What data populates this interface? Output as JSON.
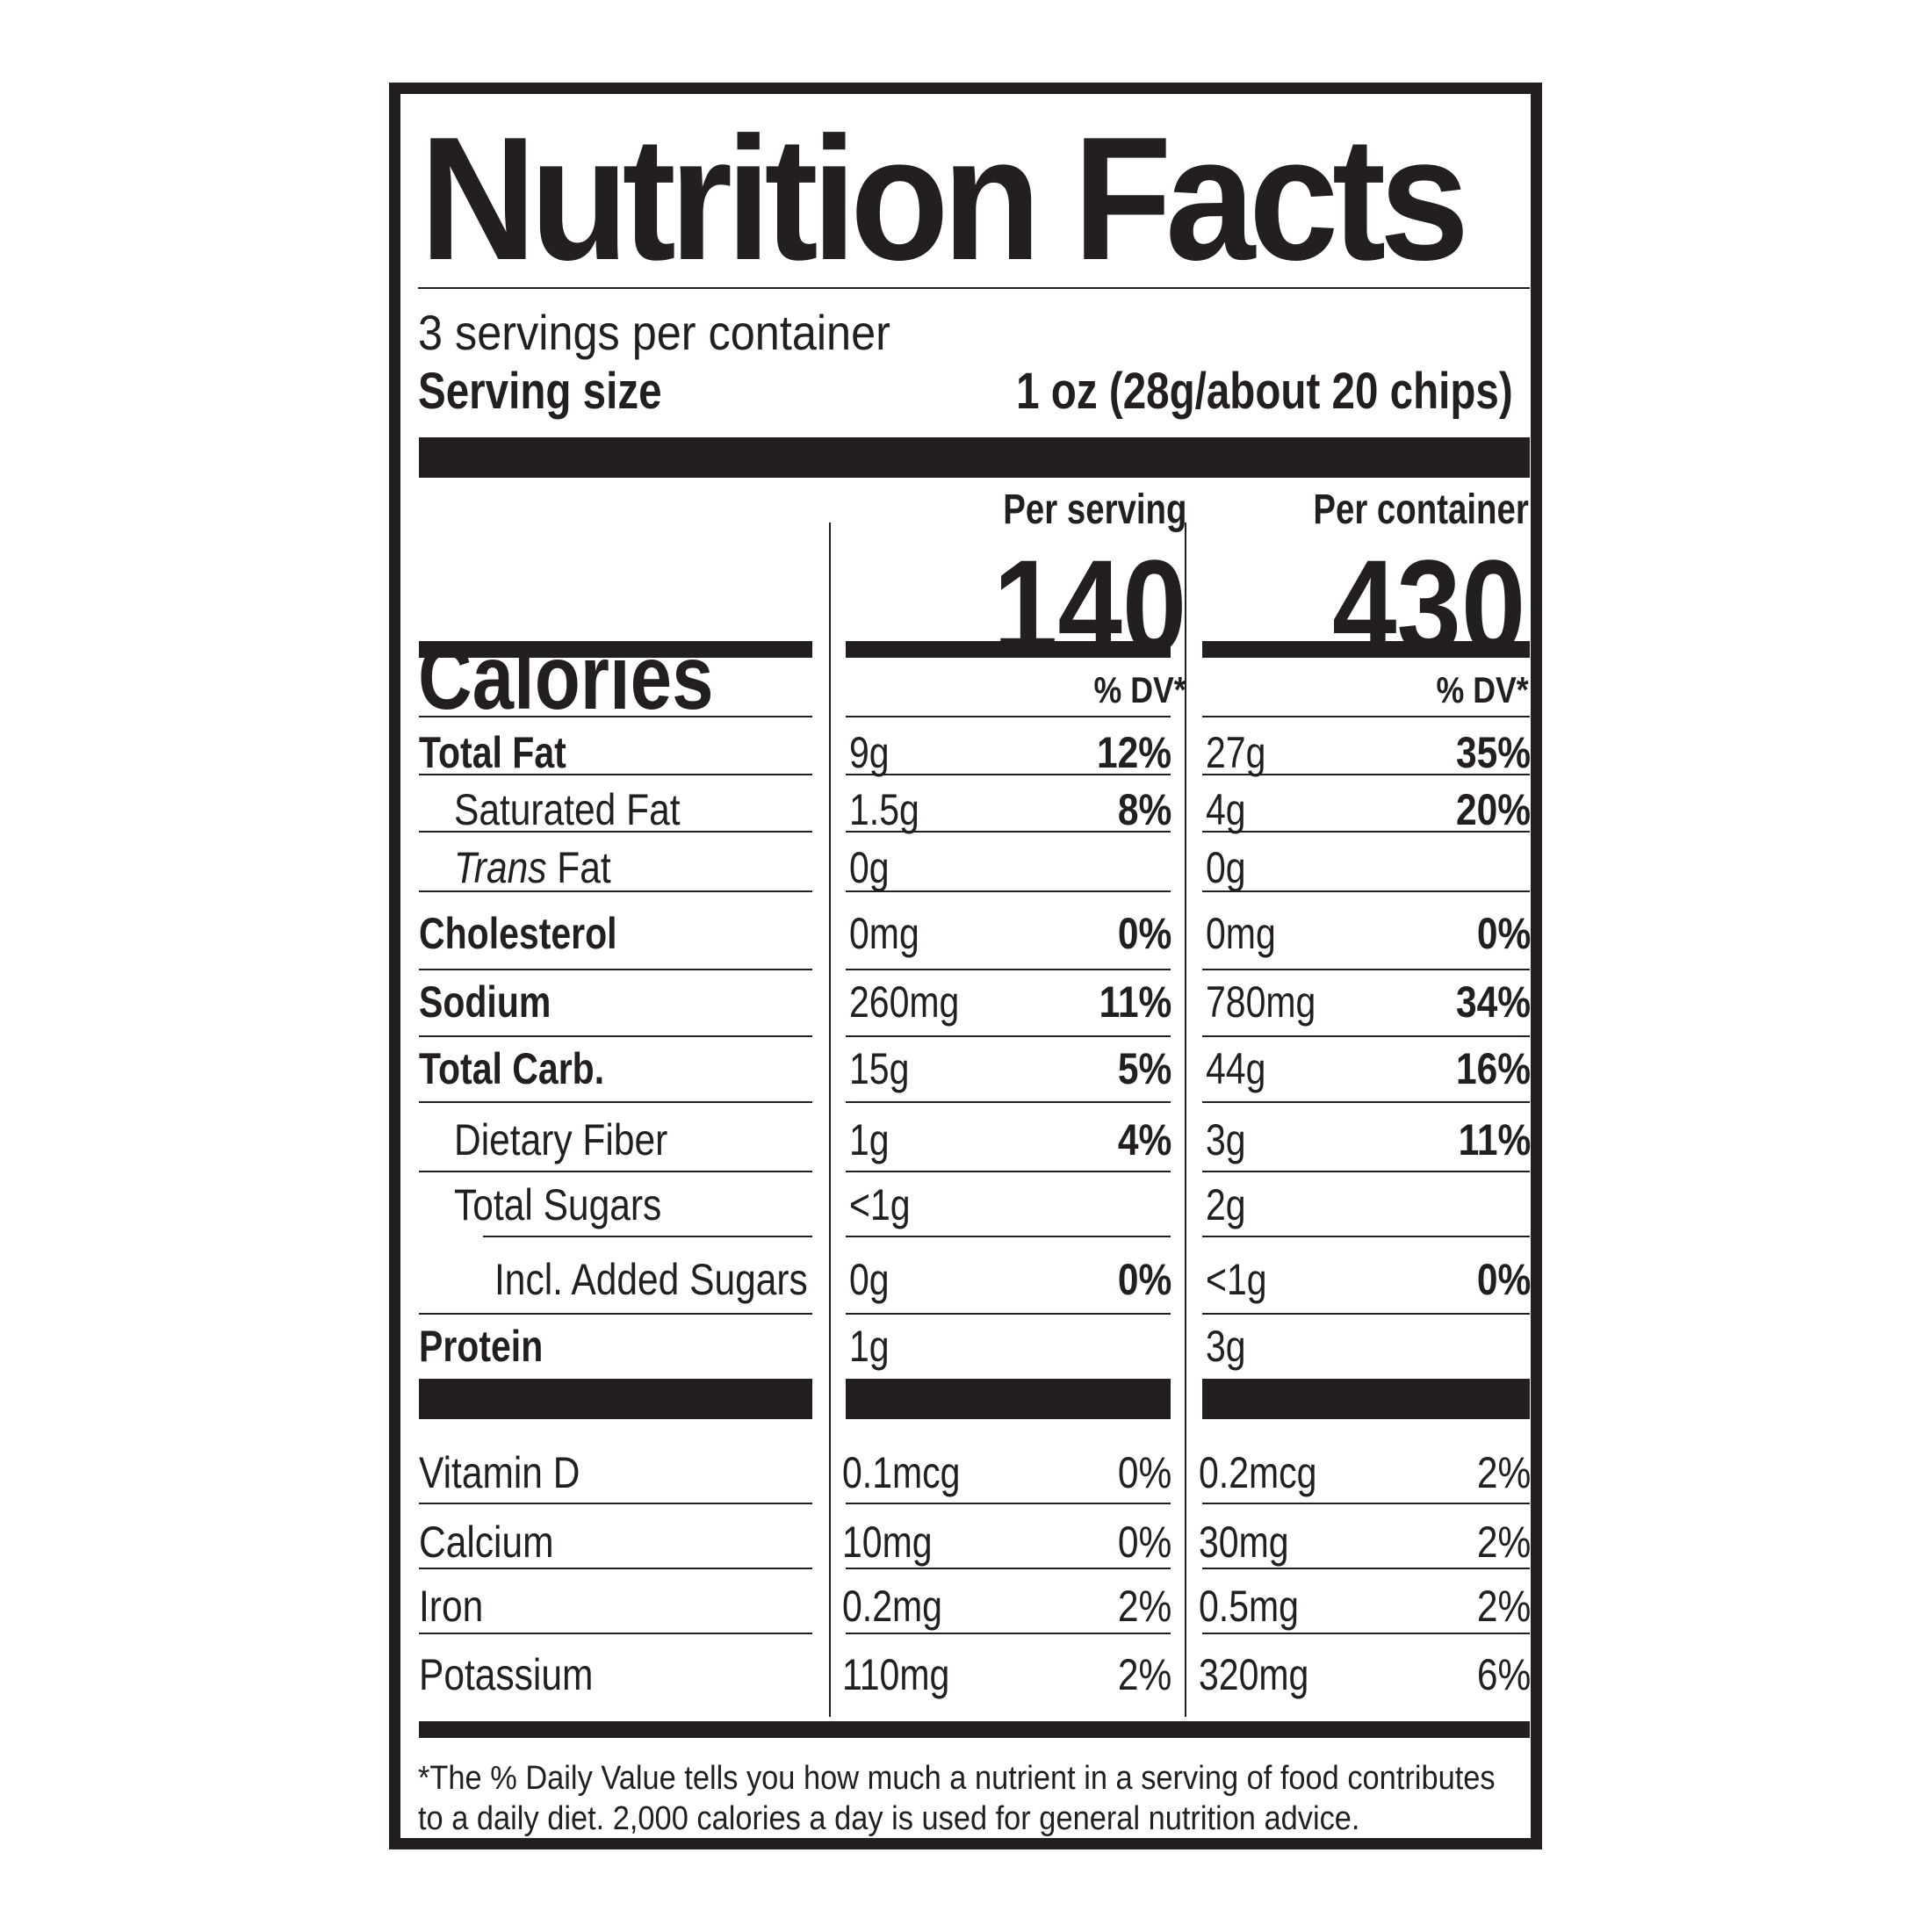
{
  "title": "Nutrition Facts",
  "servings_per_container": "3 servings per container",
  "serving_size": {
    "label": "Serving size",
    "value": "1 oz (28g/about 20 chips)"
  },
  "columns": {
    "per_serving": "Per serving",
    "per_container": "Per container"
  },
  "calories": {
    "label": "Calories",
    "per_serving": "140",
    "per_container": "430"
  },
  "dv_header": "% DV*",
  "nutrients": [
    {
      "label": "Total Fat",
      "bold": true,
      "indent": 0,
      "serving_amount": "9g",
      "serving_dv": "12%",
      "container_amount": "27g",
      "container_dv": "35%"
    },
    {
      "label": "Saturated Fat",
      "bold": false,
      "indent": 1,
      "serving_amount": "1.5g",
      "serving_dv": "8%",
      "container_amount": "4g",
      "container_dv": "20%"
    },
    {
      "label_italic": "Trans",
      "label": " Fat",
      "bold": false,
      "indent": 1,
      "serving_amount": "0g",
      "serving_dv": "",
      "container_amount": "0g",
      "container_dv": ""
    },
    {
      "label": "Cholesterol",
      "bold": true,
      "indent": 0,
      "serving_amount": "0mg",
      "serving_dv": "0%",
      "container_amount": "0mg",
      "container_dv": "0%"
    },
    {
      "label": "Sodium",
      "bold": true,
      "indent": 0,
      "serving_amount": "260mg",
      "serving_dv": "11%",
      "container_amount": "780mg",
      "container_dv": "34%"
    },
    {
      "label": "Total Carb.",
      "bold": true,
      "indent": 0,
      "serving_amount": "15g",
      "serving_dv": "5%",
      "container_amount": "44g",
      "container_dv": "16%"
    },
    {
      "label": "Dietary Fiber",
      "bold": false,
      "indent": 1,
      "serving_amount": "1g",
      "serving_dv": "4%",
      "container_amount": "3g",
      "container_dv": "11%"
    },
    {
      "label": "Total Sugars",
      "bold": false,
      "indent": 1,
      "serving_amount": "<1g",
      "serving_dv": "",
      "container_amount": "2g",
      "container_dv": ""
    },
    {
      "label": "Incl. Added Sugars",
      "bold": false,
      "indent": 2,
      "serving_amount": "0g",
      "serving_dv": "0%",
      "container_amount": "<1g",
      "container_dv": "0%"
    },
    {
      "label": "Protein",
      "bold": true,
      "indent": 0,
      "serving_amount": "1g",
      "serving_dv": "",
      "container_amount": "3g",
      "container_dv": ""
    }
  ],
  "vitamins": [
    {
      "label": "Vitamin D",
      "serving_amount": "0.1mcg",
      "serving_dv": "0%",
      "container_amount": "0.2mcg",
      "container_dv": "2%"
    },
    {
      "label": "Calcium",
      "serving_amount": "10mg",
      "serving_dv": "0%",
      "container_amount": "30mg",
      "container_dv": "2%"
    },
    {
      "label": "Iron",
      "serving_amount": "0.2mg",
      "serving_dv": "2%",
      "container_amount": "0.5mg",
      "container_dv": "2%"
    },
    {
      "label": "Potassium",
      "serving_amount": "110mg",
      "serving_dv": "2%",
      "container_amount": "320mg",
      "container_dv": "6%"
    }
  ],
  "footnote": "*The % Daily Value tells you how much a nutrient in a serving of food contributes to a daily diet. 2,000 calories a day is used for general nutrition advice.",
  "colors": {
    "ink": "#231f20",
    "background": "#ffffff"
  }
}
